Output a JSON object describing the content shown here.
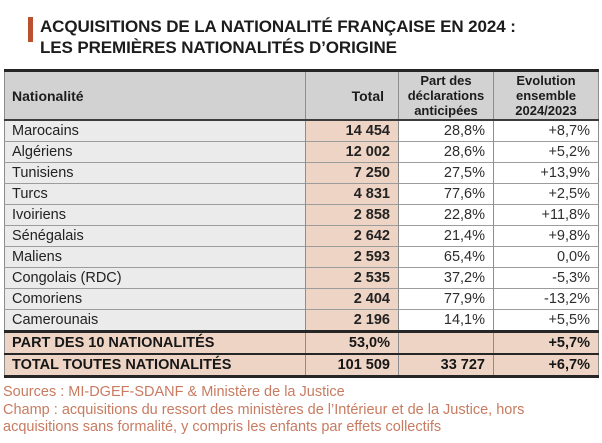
{
  "title": {
    "line1": "ACQUISITIONS DE LA NATIONALITÉ FRANÇAISE EN 2024 :",
    "line2": "LES PREMIÈRES NATIONALITÉS D’ORIGINE"
  },
  "table": {
    "columns": [
      "Nationalité",
      "Total",
      "Part des déclarations anticipées",
      "Evolution ensemble 2024/2023"
    ],
    "rows": [
      {
        "nationality": "Marocains",
        "total": "14 454",
        "part": "28,8%",
        "evolution": "+8,7%"
      },
      {
        "nationality": "Algériens",
        "total": "12 002",
        "part": "28,6%",
        "evolution": "+5,2%"
      },
      {
        "nationality": "Tunisiens",
        "total": "7 250",
        "part": "27,5%",
        "evolution": "+13,9%"
      },
      {
        "nationality": "Turcs",
        "total": "4 831",
        "part": "77,6%",
        "evolution": "+2,5%"
      },
      {
        "nationality": "Ivoiriens",
        "total": "2 858",
        "part": "22,8%",
        "evolution": "+11,8%"
      },
      {
        "nationality": "Sénégalais",
        "total": "2 642",
        "part": "21,4%",
        "evolution": "+9,8%"
      },
      {
        "nationality": "Maliens",
        "total": "2 593",
        "part": "65,4%",
        "evolution": "0,0%"
      },
      {
        "nationality": "Congolais (RDC)",
        "total": "2 535",
        "part": "37,2%",
        "evolution": "-5,3%"
      },
      {
        "nationality": "Comoriens",
        "total": "2 404",
        "part": "77,9%",
        "evolution": "-13,2%"
      },
      {
        "nationality": "Camerounais",
        "total": "2 196",
        "part": "14,1%",
        "evolution": "+5,5%"
      }
    ],
    "summary_rows": [
      {
        "label": "PART DES 10 NATIONALITÉS",
        "total": "53,0%",
        "part": "",
        "evolution": "+5,7%"
      },
      {
        "label": "TOTAL TOUTES NATIONALITÉS",
        "total": "101 509",
        "part": "33 727",
        "evolution": "+6,7%"
      }
    ]
  },
  "footer": {
    "sources": "Sources : MI-DGEF-SDANF & Ministère de la Justice",
    "champ": "Champ : acquisitions du ressort des ministères de l’Intérieur et de la Justice, hors acquisitions sans formalité, y compris les enfants par effets collectifs"
  },
  "colors": {
    "accent_bar": "#b9512f",
    "salmon_fill": "#eed4c5",
    "header_gray": "#d2d2d2",
    "name_column_gray": "#ebebeb",
    "footer_text": "#c87b60",
    "border_dark": "#262626"
  }
}
